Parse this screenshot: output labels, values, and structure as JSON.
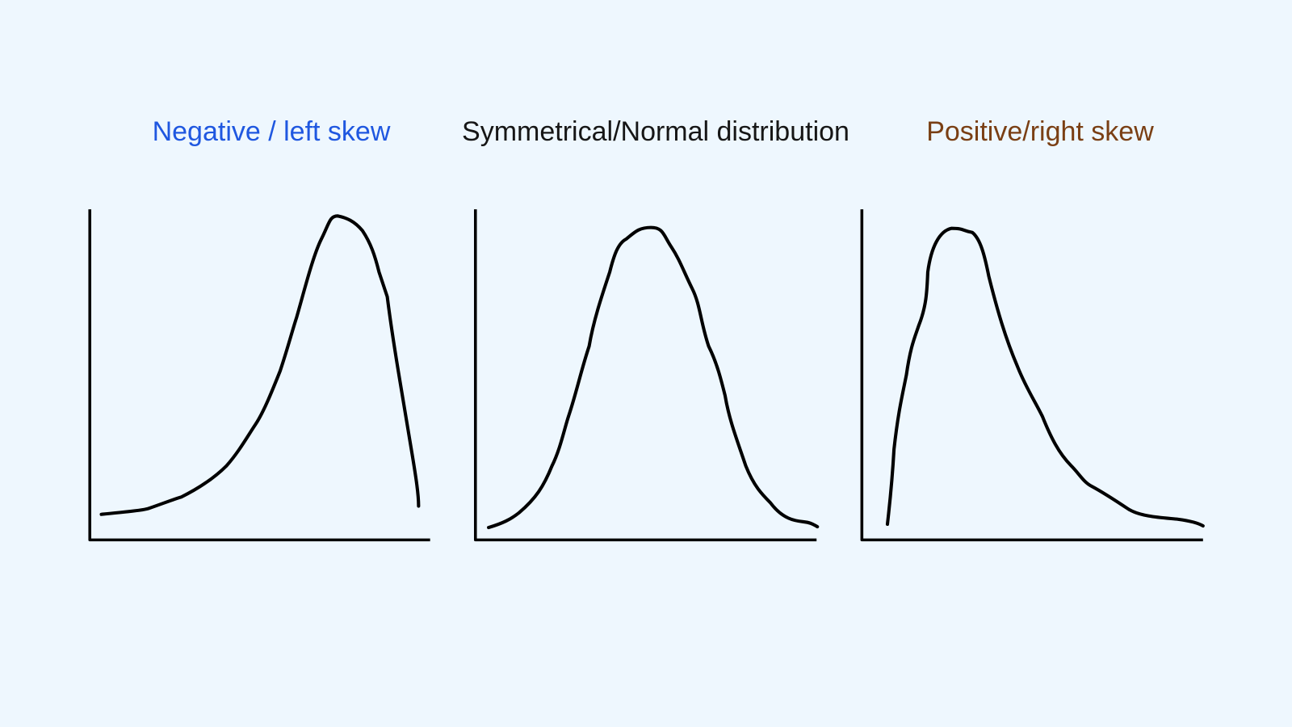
{
  "panels": [
    {
      "title": "Negative / left skew"
    },
    {
      "title": "Symmetrical/Normal distribution"
    },
    {
      "title": "Positive/right skew"
    }
  ]
}
